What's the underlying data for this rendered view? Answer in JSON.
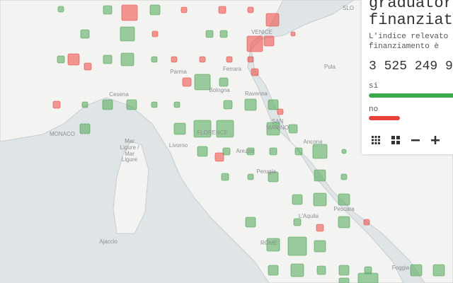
{
  "map": {
    "labels": [
      "SLO",
      "VENICE",
      "Parma",
      "Ferrara",
      "Ravenna",
      "Bologna",
      "Cesena",
      "MONACO",
      "Mar",
      "Ligure /",
      "Mar",
      "Ligure",
      "Livorno",
      "FLORENCE",
      "Arezzo",
      "SAN",
      "MARINO",
      "Ancona",
      "Perugia",
      "Pula",
      "L'Aquila",
      "Pescara",
      "ROME",
      "Ajaccio",
      "Foggia"
    ]
  },
  "panel": {
    "title_line1": "graduator",
    "title_line2": "finanziat",
    "desc_line1": "L'indice relevato",
    "desc_line2": "finanziamento è",
    "total": "3 525 249 9",
    "yes_label": "si",
    "no_label": "no"
  }
}
